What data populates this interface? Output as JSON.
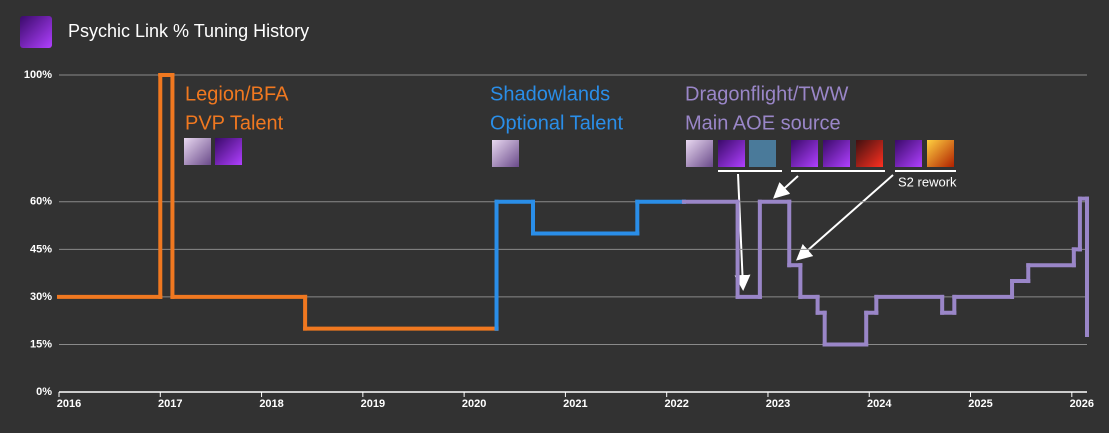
{
  "chart_data": {
    "type": "step-line",
    "title": "Psychic Link % Tuning History",
    "xlim": [
      2016,
      2026.15
    ],
    "xticks": [
      2016,
      2017,
      2018,
      2019,
      2020,
      2021,
      2022,
      2023,
      2024,
      2025,
      2026
    ],
    "ylim": [
      0,
      100
    ],
    "yticks": [
      {
        "value": 0,
        "label": "0%"
      },
      {
        "value": 15,
        "label": "15%"
      },
      {
        "value": 30,
        "label": "30%"
      },
      {
        "value": 45,
        "label": "45%"
      },
      {
        "value": 60,
        "label": "60%"
      },
      {
        "value": 100,
        "label": "100%"
      }
    ],
    "grid": true,
    "series": [
      {
        "color": "#f07820",
        "x": [
          2016,
          2017.0,
          2017.12,
          2018.43,
          2020.32
        ],
        "values": [
          30,
          100,
          30,
          20,
          20
        ]
      },
      {
        "color": "#2a8ee8",
        "x": [
          2020.32,
          2020.32,
          2020.68,
          2021.71,
          2022.17
        ],
        "values": [
          20,
          60,
          50,
          60,
          60
        ]
      },
      {
        "color": "#9a86c8",
        "x": [
          2022.17,
          2022.7,
          2022.92,
          2023.21,
          2023.32,
          2023.49,
          2023.56,
          2023.97,
          2024.07,
          2024.72,
          2024.84,
          2025.41,
          2025.57,
          2026.02,
          2026.08,
          2026.15
        ],
        "values": [
          60,
          30,
          60,
          40,
          30,
          25,
          15,
          25,
          30,
          25,
          30,
          35,
          40,
          45,
          61,
          18
        ]
      }
    ],
    "annotations": [
      {
        "text": "Legion/BFA",
        "color": "#f07820"
      },
      {
        "text": "PVP Talent",
        "color": "#f07820"
      },
      {
        "text": "Shadowlands",
        "color": "#2a8ee8"
      },
      {
        "text": "Optional Talent",
        "color": "#2a8ee8"
      },
      {
        "text": "Dragonflight/TWW",
        "color": "#9a86c8"
      },
      {
        "text": "Main AOE source",
        "color": "#9a86c8"
      },
      {
        "text": "S2 rework",
        "color": "#ffffff"
      }
    ]
  }
}
